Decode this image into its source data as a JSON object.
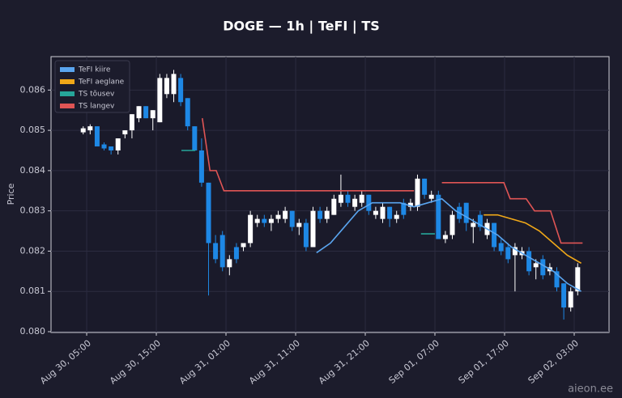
{
  "chart_data": {
    "type": "candlestick",
    "title": "DOGE — 1h  |  TeFI  |  TS",
    "y_label": "Price",
    "watermark": "aieon.ee",
    "x": [
      4.5,
      5.5,
      6.5,
      7.5,
      8.5,
      9.5,
      10.5,
      11.5,
      12.5,
      13.5,
      14.5,
      15.5,
      16.5,
      17.5,
      18.5,
      19.5,
      20.5,
      21.5,
      22.5,
      23.5,
      24.5,
      25.5,
      26.5,
      27.5,
      28.5,
      29.5,
      30.5,
      31.5,
      32.5,
      33.5,
      34.5,
      35.5,
      36.5,
      37.5,
      38.5,
      39.5,
      40.5,
      41.5,
      42.5,
      43.5,
      44.5,
      45.5,
      46.5,
      47.5,
      48.5,
      49.5,
      50.5,
      51.5,
      52.5,
      53.5,
      54.5,
      55.5,
      56.5,
      57.5,
      58.5,
      59.5,
      60.5,
      61.5,
      62.5,
      63.5,
      64.5,
      65.5,
      66.5,
      67.5,
      68.5,
      69.5,
      70.5,
      71.5,
      72.5,
      73.5,
      74.5,
      75.5
    ],
    "open": [
      0.08495,
      0.085,
      0.0851,
      0.08465,
      0.0846,
      0.0845,
      0.0849,
      0.085,
      0.0853,
      0.0856,
      0.0853,
      0.0852,
      0.0859,
      0.0859,
      0.0863,
      0.0858,
      0.0851,
      0.0845,
      0.0837,
      0.0822,
      0.0824,
      0.0816,
      0.0821,
      0.0821,
      0.0822,
      0.0827,
      0.0828,
      0.0827,
      0.0828,
      0.0828,
      0.083,
      0.0826,
      0.0827,
      0.0821,
      0.083,
      0.0828,
      0.0829,
      0.0832,
      0.0834,
      0.0831,
      0.0832,
      0.0834,
      0.0829,
      0.0828,
      0.0831,
      0.0828,
      0.0832,
      0.0831,
      0.0831,
      0.0838,
      0.0833,
      0.0834,
      0.0823,
      0.0824,
      0.0831,
      0.0832,
      0.0826,
      0.0829,
      0.0824,
      0.0827,
      0.0822,
      0.0821,
      0.0819,
      0.0819,
      0.082,
      0.0816,
      0.0818,
      0.0815,
      0.0815,
      0.0812,
      0.0806,
      0.081
    ],
    "high": [
      0.0851,
      0.08515,
      0.0851,
      0.0847,
      0.0846,
      0.0848,
      0.085,
      0.0854,
      0.0856,
      0.0856,
      0.0855,
      0.0864,
      0.0864,
      0.0865,
      0.0864,
      0.0858,
      0.0851,
      0.0848,
      0.0837,
      0.0824,
      0.0825,
      0.0819,
      0.0822,
      0.0822,
      0.083,
      0.0829,
      0.0829,
      0.0829,
      0.083,
      0.0831,
      0.083,
      0.0828,
      0.0828,
      0.0831,
      0.0831,
      0.0831,
      0.0834,
      0.0839,
      0.0835,
      0.0834,
      0.0835,
      0.0834,
      0.0831,
      0.0832,
      0.0831,
      0.083,
      0.0833,
      0.0833,
      0.0839,
      0.0838,
      0.0835,
      0.0835,
      0.0825,
      0.083,
      0.0832,
      0.0832,
      0.0828,
      0.083,
      0.0828,
      0.0827,
      0.0823,
      0.0822,
      0.0822,
      0.0821,
      0.0821,
      0.0818,
      0.0819,
      0.0817,
      0.0816,
      0.0812,
      0.0811,
      0.0817
    ],
    "low": [
      0.0849,
      0.0849,
      0.0846,
      0.0845,
      0.0844,
      0.0844,
      0.0848,
      0.0848,
      0.0852,
      0.0853,
      0.085,
      0.0852,
      0.0858,
      0.0857,
      0.0856,
      0.085,
      0.0845,
      0.0836,
      0.0809,
      0.0817,
      0.0815,
      0.0814,
      0.0817,
      0.082,
      0.0821,
      0.0826,
      0.0826,
      0.0825,
      0.0827,
      0.0827,
      0.0825,
      0.0824,
      0.082,
      0.0821,
      0.0827,
      0.0827,
      0.0829,
      0.0831,
      0.0831,
      0.083,
      0.0831,
      0.0829,
      0.0828,
      0.0827,
      0.0826,
      0.0827,
      0.0828,
      0.083,
      0.083,
      0.0833,
      0.0832,
      0.0823,
      0.0822,
      0.0823,
      0.0827,
      0.0825,
      0.0822,
      0.0825,
      0.0823,
      0.082,
      0.0819,
      0.0817,
      0.081,
      0.0818,
      0.0814,
      0.0813,
      0.0813,
      0.0814,
      0.081,
      0.0803,
      0.0805,
      0.0809
    ],
    "close": [
      0.08505,
      0.0851,
      0.0846,
      0.08455,
      0.0845,
      0.0848,
      0.085,
      0.0854,
      0.0856,
      0.0853,
      0.0855,
      0.0863,
      0.0863,
      0.0864,
      0.0857,
      0.0851,
      0.0845,
      0.0837,
      0.0822,
      0.0818,
      0.0816,
      0.0818,
      0.0818,
      0.0822,
      0.0829,
      0.0828,
      0.0827,
      0.0828,
      0.0829,
      0.083,
      0.0826,
      0.0827,
      0.0821,
      0.083,
      0.0828,
      0.083,
      0.0833,
      0.0834,
      0.0832,
      0.0833,
      0.0834,
      0.083,
      0.083,
      0.0831,
      0.0828,
      0.0829,
      0.0829,
      0.0832,
      0.0838,
      0.0834,
      0.0834,
      0.0823,
      0.0824,
      0.0829,
      0.0828,
      0.0827,
      0.0827,
      0.0826,
      0.0827,
      0.0821,
      0.082,
      0.0818,
      0.0821,
      0.082,
      0.0815,
      0.0817,
      0.0814,
      0.0816,
      0.0811,
      0.0806,
      0.081,
      0.0816
    ],
    "up_color": "#ffffff",
    "down_color": "#1e88e5",
    "series": [
      {
        "name": "TeFI kiire",
        "color": "#5aa5ef",
        "x": [
          38,
          40,
          42,
          44,
          46,
          48,
          50,
          52,
          54,
          56,
          58,
          60,
          62,
          64,
          66,
          68,
          70,
          72,
          74,
          76
        ],
        "values": [
          0.08196,
          0.0822,
          0.0826,
          0.083,
          0.0832,
          0.0832,
          0.0832,
          0.0831,
          0.0832,
          0.0833,
          0.083,
          0.0828,
          0.0826,
          0.0824,
          0.0821,
          0.0819,
          0.0817,
          0.0815,
          0.0812,
          0.081
        ]
      },
      {
        "name": "TeFI aeglane",
        "color": "#f0a818",
        "x": [
          62,
          64,
          66,
          68,
          70,
          72,
          74,
          76
        ],
        "values": [
          0.0829,
          0.0829,
          0.0828,
          0.0827,
          0.0825,
          0.0822,
          0.0819,
          0.0817
        ]
      },
      {
        "name": "TS tõusev",
        "color": "#26a69a",
        "x": [
          18.6,
          20.6,
          21,
          53,
          55
        ],
        "values": [
          0.0845,
          0.0845,
          null,
          0.08243,
          0.08243
        ]
      },
      {
        "name": "TS langev",
        "color": "#e05555",
        "x": [
          21.6,
          22.7,
          23.6,
          24.7,
          52,
          53,
          56,
          64.9,
          65.8,
          68.1,
          69.3,
          71.6,
          73.1,
          76.2
        ],
        "values": [
          0.0853,
          0.084,
          0.084,
          0.0835,
          0.0835,
          null,
          0.0837,
          0.0837,
          0.0833,
          0.0833,
          0.083,
          0.083,
          0.0822,
          0.0822
        ]
      }
    ],
    "xlim": [
      -0.12,
      80
    ],
    "ylim": [
      0.07998,
      0.08683
    ],
    "xticks": [
      {
        "value": 5,
        "label": "Aug 30, 05:00"
      },
      {
        "value": 15,
        "label": "Aug 30, 15:00"
      },
      {
        "value": 25,
        "label": "Aug 31, 01:00"
      },
      {
        "value": 35,
        "label": "Aug 31, 11:00"
      },
      {
        "value": 45,
        "label": "Aug 31, 21:00"
      },
      {
        "value": 55,
        "label": "Sep 01, 07:00"
      },
      {
        "value": 65,
        "label": "Sep 01, 17:00"
      },
      {
        "value": 75,
        "label": "Sep 02, 03:00"
      }
    ],
    "yticks": [
      {
        "value": 0.08,
        "label": "0.080"
      },
      0.081,
      0.082,
      0.083,
      0.084,
      0.085,
      0.086
    ],
    "grid": true,
    "legend": "upper left"
  }
}
